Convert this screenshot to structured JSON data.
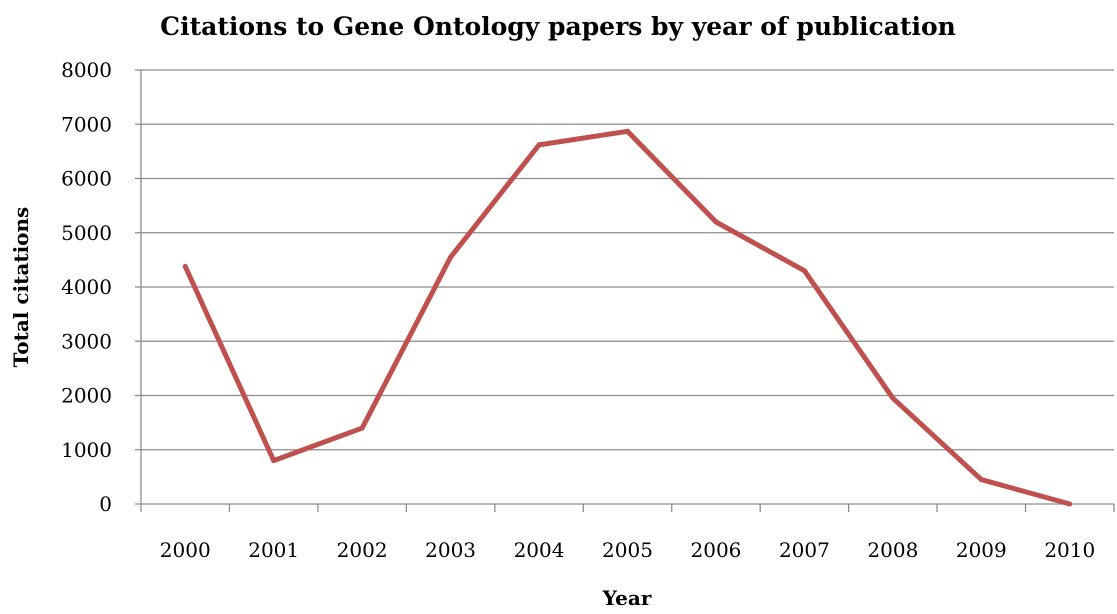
{
  "chart_data": {
    "type": "line",
    "title": "Citations to Gene Ontology papers by year of publication",
    "xlabel": "Year",
    "ylabel": "Total citations",
    "categories": [
      "2000",
      "2001",
      "2002",
      "2003",
      "2004",
      "2005",
      "2006",
      "2007",
      "2008",
      "2009",
      "2010"
    ],
    "series": [
      {
        "values": [
          4380,
          800,
          1400,
          4550,
          6620,
          6870,
          5200,
          4300,
          1950,
          450,
          0
        ]
      }
    ],
    "ylim": [
      0,
      8000
    ],
    "yticks": [
      "0",
      "1000",
      "2000",
      "3000",
      "4000",
      "5000",
      "6000",
      "7000",
      "8000"
    ],
    "grid": true,
    "legend": "none",
    "line_color": "#c0504d"
  }
}
